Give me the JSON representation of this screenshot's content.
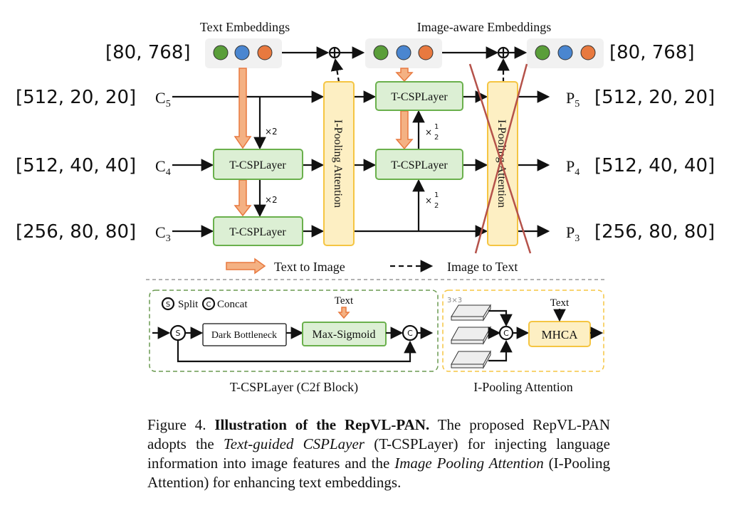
{
  "top": {
    "text_embeddings": "Text Embeddings",
    "image_aware_embeddings": "Image-aware Embeddings",
    "shape_left": "[80, 768]",
    "shape_right": "[80, 768]"
  },
  "rows": [
    {
      "in_shape": "[512, 20, 20]",
      "in": "C5",
      "out": "P5",
      "out_shape": "[512, 20, 20]"
    },
    {
      "in_shape": "[512, 40, 40]",
      "in": "C4",
      "out": "P4",
      "out_shape": "[512, 40, 40]"
    },
    {
      "in_shape": "[256, 80, 80]",
      "in": "C3",
      "out": "P3",
      "out_shape": "[256, 80, 80]"
    }
  ],
  "blocks": {
    "tcsp": "T-CSPLayer",
    "ipool": "I-Pooling Attention",
    "x2": "×2",
    "half_num": "1",
    "half_den": "2",
    "times": "×"
  },
  "legend": {
    "text_to_image": "Text to Image",
    "image_to_text": "Image to Text"
  },
  "detail": {
    "split": "Split",
    "concat": "Concat",
    "s": "S",
    "c": "C",
    "text": "Text",
    "dark": "Dark Bottleneck",
    "maxsig": "Max-Sigmoid",
    "tcsp_title": "T-CSPLayer (C2f Block)",
    "k": "3×3",
    "mhca": "MHCA",
    "ipool_title": "I-Pooling Attention"
  },
  "caption": {
    "prefix": "Figure 4. ",
    "bold": "Illustration of the RepVL-PAN.",
    "t1": " The proposed RepVL-PAN adopts the ",
    "i1": "Text-guided CSPLayer",
    "t2": " (T-CSPLayer) for injecting language information into image features and the ",
    "i2": "Image Pooling Attention",
    "t3": " (I-Pooling Attention) for enhancing text embeddings."
  },
  "colors": {
    "green": "#5a9e3a",
    "blue": "#4a86d0",
    "orange": "#e8793f",
    "cross": "#b5524a"
  }
}
